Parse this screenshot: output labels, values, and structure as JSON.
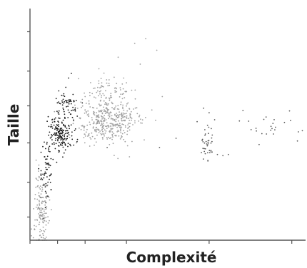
{
  "chart_data": {
    "type": "scatter",
    "title": "",
    "xlabel": "Complexité",
    "ylabel": "Taille",
    "xlim": [
      0,
      100
    ],
    "ylim": [
      0,
      100
    ],
    "x_tick_values": [
      0,
      10,
      20,
      35,
      65,
      95
    ],
    "y_tick_values": [
      10,
      25,
      42,
      58,
      73,
      90
    ],
    "grid": false,
    "legend": "none",
    "series": [
      {
        "color": "#1a1a1a",
        "clusters": [
          {
            "x": 11,
            "y": 46,
            "sx": 2.2,
            "sy": 4,
            "n": 180
          },
          {
            "x": 6,
            "y": 28,
            "sx": 1.2,
            "sy": 6,
            "n": 60
          },
          {
            "x": 13,
            "y": 58,
            "sx": 2.2,
            "sy": 3,
            "n": 60
          }
        ],
        "points": [
          [
            14,
            70
          ],
          [
            13,
            66
          ],
          [
            15,
            72
          ],
          [
            8,
            52
          ],
          [
            12,
            57
          ],
          [
            10,
            48
          ],
          [
            16,
            60
          ]
        ]
      },
      {
        "color": "#a0a0a0",
        "clusters": [
          {
            "x": 28,
            "y": 52,
            "sx": 5.5,
            "sy": 5,
            "n": 420
          },
          {
            "x": 4,
            "y": 12,
            "sx": 1.3,
            "sy": 9,
            "n": 140
          },
          {
            "x": 29,
            "y": 64,
            "sx": 4,
            "sy": 4,
            "n": 60
          }
        ],
        "points": [
          [
            38,
            85
          ],
          [
            42,
            87
          ],
          [
            46,
            82
          ],
          [
            32,
            79
          ],
          [
            25,
            74
          ],
          [
            22,
            68
          ],
          [
            40,
            76
          ],
          [
            48,
            62
          ],
          [
            34,
            70
          ],
          [
            20,
            62
          ]
        ]
      },
      {
        "color": "#5a5a5a",
        "clusters": [
          {
            "x": 64,
            "y": 42,
            "sx": 1.2,
            "sy": 4,
            "n": 40
          },
          {
            "x": 87,
            "y": 50,
            "sx": 6,
            "sy": 3,
            "n": 25
          }
        ],
        "points": [
          [
            66,
            38
          ],
          [
            68,
            37
          ],
          [
            70,
            36.5
          ],
          [
            72,
            37
          ],
          [
            63,
            57
          ],
          [
            65,
            55
          ],
          [
            67,
            52
          ],
          [
            47,
            40
          ],
          [
            53,
            44
          ],
          [
            28,
            40
          ]
        ]
      }
    ]
  }
}
